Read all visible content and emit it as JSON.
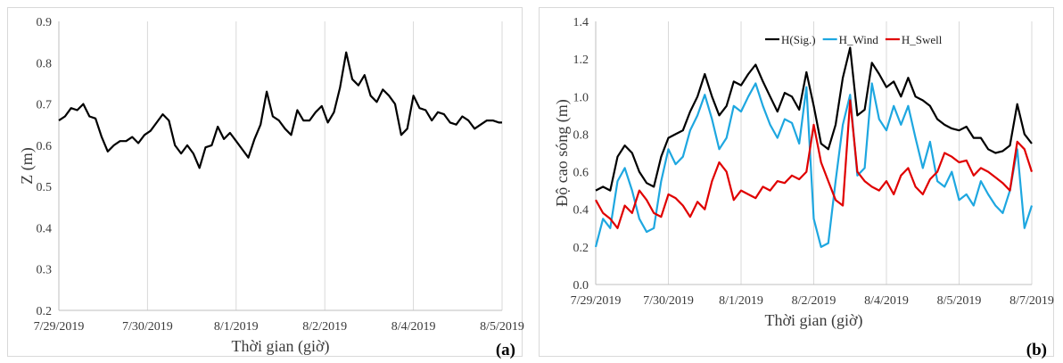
{
  "chart_data": [
    {
      "type": "line",
      "panel_label": "(a)",
      "xlabel": "Thời gian (giờ)",
      "ylabel": "Z (m)",
      "ylim": [
        0.2,
        0.9
      ],
      "yticks": [
        "0.2",
        "0.3",
        "0.4",
        "0.5",
        "0.6",
        "0.7",
        "0.8",
        "0.9"
      ],
      "xlim": [
        0,
        7.25
      ],
      "xticks": [
        "7/29/2019",
        "7/30/2019",
        "8/1/2019",
        "8/2/2019",
        "8/4/2019",
        "8/5/2019"
      ],
      "grid": "vertical",
      "legend": null,
      "colors": {
        "series": "#000000",
        "grid": "#d9d9d9",
        "axis": "#bfbfbf"
      },
      "series": [
        {
          "color": "#000000",
          "x": [
            0,
            0.1,
            0.2,
            0.3,
            0.4,
            0.5,
            0.6,
            0.7,
            0.8,
            0.9,
            1.0,
            1.1,
            1.2,
            1.3,
            1.4,
            1.5,
            1.6,
            1.7,
            1.8,
            1.9,
            2.0,
            2.1,
            2.2,
            2.3,
            2.4,
            2.5,
            2.6,
            2.7,
            2.8,
            2.9,
            3.0,
            3.1,
            3.2,
            3.3,
            3.4,
            3.5,
            3.6,
            3.7,
            3.8,
            3.9,
            4.0,
            4.1,
            4.2,
            4.3,
            4.4,
            4.5,
            4.6,
            4.7,
            4.8,
            4.9,
            5.0,
            5.1,
            5.2,
            5.3,
            5.4,
            5.5,
            5.6,
            5.7,
            5.8,
            5.9,
            6.0,
            6.1,
            6.2,
            6.3,
            6.4,
            6.5,
            6.6,
            6.7,
            6.8,
            6.9,
            7.0,
            7.1,
            7.2,
            7.25
          ],
          "y": [
            0.66,
            0.67,
            0.69,
            0.685,
            0.7,
            0.67,
            0.665,
            0.62,
            0.585,
            0.6,
            0.61,
            0.61,
            0.62,
            0.605,
            0.625,
            0.635,
            0.655,
            0.675,
            0.66,
            0.6,
            0.58,
            0.6,
            0.58,
            0.545,
            0.595,
            0.6,
            0.645,
            0.615,
            0.63,
            0.61,
            0.59,
            0.57,
            0.615,
            0.65,
            0.73,
            0.67,
            0.66,
            0.64,
            0.625,
            0.685,
            0.66,
            0.66,
            0.68,
            0.695,
            0.655,
            0.68,
            0.74,
            0.825,
            0.76,
            0.745,
            0.77,
            0.72,
            0.705,
            0.735,
            0.72,
            0.7,
            0.625,
            0.64,
            0.72,
            0.69,
            0.685,
            0.66,
            0.68,
            0.675,
            0.655,
            0.65,
            0.67,
            0.66,
            0.64,
            0.65,
            0.66,
            0.66,
            0.655,
            0.655
          ]
        }
      ]
    },
    {
      "type": "line",
      "panel_label": "(b)",
      "xlabel": "Thời gian (giờ)",
      "ylabel": "Độ cao sóng (m)",
      "ylim": [
        0.0,
        1.4
      ],
      "yticks": [
        "0.0",
        "0.2",
        "0.4",
        "0.6",
        "0.8",
        "1.0",
        "1.2",
        "1.4"
      ],
      "xlim": [
        0,
        9
      ],
      "xticks": [
        "7/29/2019",
        "7/30/2019",
        "8/1/2019",
        "8/2/2019",
        "8/4/2019",
        "8/5/2019",
        "8/7/2019"
      ],
      "grid": "vertical",
      "legend": "top-center",
      "colors": {
        "grid": "#d9d9d9",
        "axis": "#bfbfbf"
      },
      "series": [
        {
          "name": "H(Sig.)",
          "color": "#000000",
          "x": [
            0,
            0.15,
            0.3,
            0.45,
            0.6,
            0.75,
            0.9,
            1.05,
            1.2,
            1.35,
            1.5,
            1.65,
            1.8,
            1.95,
            2.1,
            2.25,
            2.4,
            2.55,
            2.7,
            2.85,
            3.0,
            3.15,
            3.3,
            3.45,
            3.6,
            3.75,
            3.9,
            4.05,
            4.2,
            4.35,
            4.5,
            4.65,
            4.8,
            4.95,
            5.1,
            5.25,
            5.4,
            5.55,
            5.7,
            5.85,
            6.0,
            6.15,
            6.3,
            6.45,
            6.6,
            6.75,
            6.9,
            7.05,
            7.2,
            7.35,
            7.5,
            7.65,
            7.8,
            7.95,
            8.1,
            8.25,
            8.4,
            8.55,
            8.7,
            8.85,
            9.0
          ],
          "y": [
            0.5,
            0.52,
            0.5,
            0.68,
            0.74,
            0.7,
            0.6,
            0.54,
            0.52,
            0.68,
            0.78,
            0.8,
            0.82,
            0.92,
            1.0,
            1.12,
            1.0,
            0.9,
            0.95,
            1.08,
            1.06,
            1.12,
            1.17,
            1.08,
            1.0,
            0.92,
            1.02,
            1.0,
            0.93,
            1.13,
            0.95,
            0.75,
            0.72,
            0.85,
            1.1,
            1.26,
            0.9,
            0.93,
            1.18,
            1.12,
            1.05,
            1.08,
            1.0,
            1.1,
            1.0,
            0.98,
            0.95,
            0.88,
            0.85,
            0.83,
            0.82,
            0.84,
            0.78,
            0.78,
            0.72,
            0.7,
            0.71,
            0.74,
            0.96,
            0.8,
            0.75
          ]
        },
        {
          "name": "H_Wind",
          "color": "#1ea7e0",
          "x": [
            0,
            0.15,
            0.3,
            0.45,
            0.6,
            0.75,
            0.9,
            1.05,
            1.2,
            1.35,
            1.5,
            1.65,
            1.8,
            1.95,
            2.1,
            2.25,
            2.4,
            2.55,
            2.7,
            2.85,
            3.0,
            3.15,
            3.3,
            3.45,
            3.6,
            3.75,
            3.9,
            4.05,
            4.2,
            4.35,
            4.5,
            4.65,
            4.8,
            4.95,
            5.1,
            5.25,
            5.4,
            5.55,
            5.7,
            5.85,
            6.0,
            6.15,
            6.3,
            6.45,
            6.6,
            6.75,
            6.9,
            7.05,
            7.2,
            7.35,
            7.5,
            7.65,
            7.8,
            7.95,
            8.1,
            8.25,
            8.4,
            8.55,
            8.7,
            8.85,
            9.0
          ],
          "y": [
            0.2,
            0.35,
            0.3,
            0.55,
            0.62,
            0.5,
            0.35,
            0.28,
            0.3,
            0.55,
            0.72,
            0.64,
            0.68,
            0.82,
            0.9,
            1.01,
            0.88,
            0.72,
            0.78,
            0.95,
            0.92,
            1.0,
            1.07,
            0.95,
            0.85,
            0.78,
            0.88,
            0.86,
            0.75,
            1.05,
            0.35,
            0.2,
            0.22,
            0.55,
            0.85,
            1.01,
            0.58,
            0.62,
            1.07,
            0.88,
            0.82,
            0.95,
            0.85,
            0.95,
            0.78,
            0.62,
            0.76,
            0.55,
            0.52,
            0.6,
            0.45,
            0.48,
            0.42,
            0.55,
            0.48,
            0.42,
            0.38,
            0.5,
            0.72,
            0.3,
            0.42
          ]
        },
        {
          "name": "H_Swell",
          "color": "#e00000",
          "x": [
            0,
            0.15,
            0.3,
            0.45,
            0.6,
            0.75,
            0.9,
            1.05,
            1.2,
            1.35,
            1.5,
            1.65,
            1.8,
            1.95,
            2.1,
            2.25,
            2.4,
            2.55,
            2.7,
            2.85,
            3.0,
            3.15,
            3.3,
            3.45,
            3.6,
            3.75,
            3.9,
            4.05,
            4.2,
            4.35,
            4.5,
            4.65,
            4.8,
            4.95,
            5.1,
            5.25,
            5.4,
            5.55,
            5.7,
            5.85,
            6.0,
            6.15,
            6.3,
            6.45,
            6.6,
            6.75,
            6.9,
            7.05,
            7.2,
            7.35,
            7.5,
            7.65,
            7.8,
            7.95,
            8.1,
            8.25,
            8.4,
            8.55,
            8.7,
            8.85,
            9.0
          ],
          "y": [
            0.45,
            0.38,
            0.35,
            0.3,
            0.42,
            0.38,
            0.5,
            0.45,
            0.38,
            0.36,
            0.48,
            0.46,
            0.42,
            0.36,
            0.44,
            0.4,
            0.55,
            0.65,
            0.6,
            0.45,
            0.5,
            0.48,
            0.46,
            0.52,
            0.5,
            0.55,
            0.54,
            0.58,
            0.56,
            0.6,
            0.85,
            0.65,
            0.55,
            0.45,
            0.42,
            0.98,
            0.6,
            0.55,
            0.52,
            0.5,
            0.55,
            0.48,
            0.58,
            0.62,
            0.52,
            0.48,
            0.56,
            0.6,
            0.7,
            0.68,
            0.65,
            0.66,
            0.58,
            0.62,
            0.6,
            0.57,
            0.54,
            0.5,
            0.76,
            0.72,
            0.6
          ]
        }
      ]
    }
  ]
}
